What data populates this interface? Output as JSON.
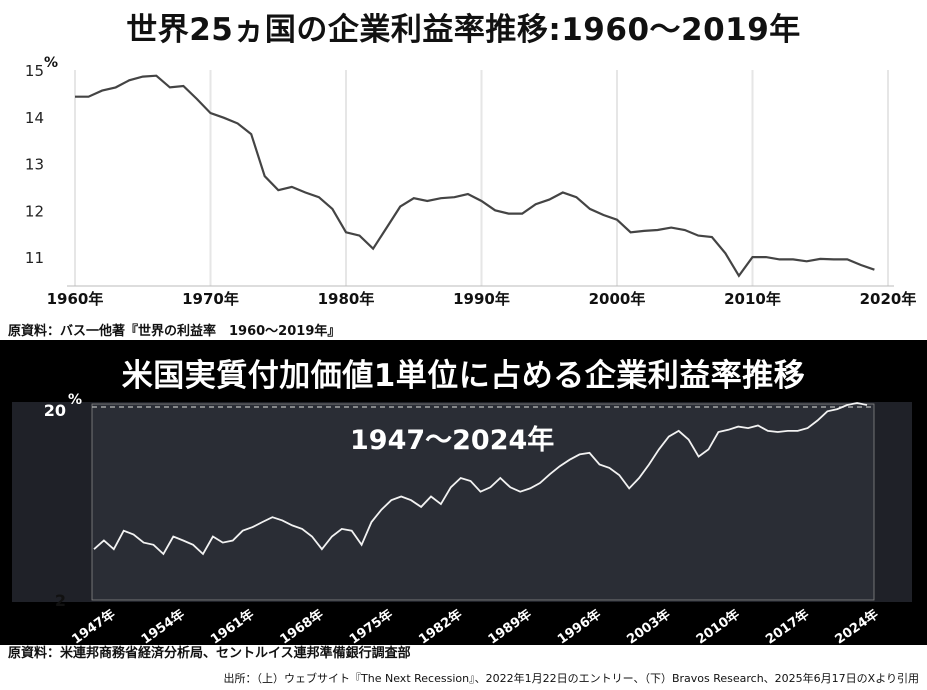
{
  "top": {
    "title": "世界25ヵ国の企業利益率推移:1960～2019年",
    "source": "原資料：バス一他著『世界の利益率　1960～2019年』"
  },
  "bottom": {
    "title": "米国実質付加価値1単位に占める企業利益率推移",
    "subtitle": "1947～2024年",
    "source": "原資料：米連邦商務省経済分析局、セントルイス連邦準備銀行調査部"
  },
  "footer": "出所：（上）ウェブサイト『The Next Recession』、2022年1月22日のエントリー、（下）Bravos Research、2025年6月17日のXより引用",
  "colors": {
    "top_line": "#444444",
    "bottom_bg": "#2a2d35",
    "bottom_line": "#f2f2f2"
  },
  "chart_data": [
    {
      "type": "line",
      "unit": "%",
      "xlim": [
        1960,
        2020
      ],
      "ylim": [
        10.8,
        15
      ],
      "x_ticks": [
        "1960年",
        "1970年",
        "1980年",
        "1990年",
        "2000年",
        "2010年",
        "2020年"
      ],
      "y_ticks": [
        "15",
        "14",
        "13",
        "12",
        "11"
      ],
      "grid": "vertical",
      "x": [
        1960,
        1961,
        1962,
        1963,
        1964,
        1965,
        1966,
        1967,
        1968,
        1969,
        1970,
        1971,
        1972,
        1973,
        1974,
        1975,
        1976,
        1977,
        1978,
        1979,
        1980,
        1981,
        1982,
        1983,
        1984,
        1985,
        1986,
        1987,
        1988,
        1989,
        1990,
        1991,
        1992,
        1993,
        1994,
        1995,
        1996,
        1997,
        1998,
        1999,
        2000,
        2001,
        2002,
        2003,
        2004,
        2005,
        2006,
        2007,
        2008,
        2009,
        2010,
        2011,
        2012,
        2013,
        2014,
        2015,
        2016,
        2017,
        2018,
        2019
      ],
      "y": [
        14.45,
        14.45,
        14.58,
        14.65,
        14.8,
        14.88,
        14.9,
        14.65,
        14.68,
        14.4,
        14.1,
        14.0,
        13.88,
        13.65,
        12.75,
        12.45,
        12.52,
        12.4,
        12.3,
        12.05,
        11.55,
        11.48,
        11.2,
        11.65,
        12.1,
        12.28,
        12.22,
        12.28,
        12.3,
        12.37,
        12.22,
        12.02,
        11.95,
        11.95,
        12.15,
        12.25,
        12.4,
        12.3,
        12.05,
        11.92,
        11.82,
        11.55,
        11.58,
        11.6,
        11.65,
        11.6,
        11.48,
        11.45,
        11.1,
        10.62,
        11.02,
        11.02,
        10.97,
        10.97,
        10.93,
        10.98,
        10.97,
        10.97,
        10.85,
        10.75
      ]
    },
    {
      "type": "line",
      "unit": "%",
      "scale": "log",
      "xlim": [
        1947,
        2025.5
      ],
      "ylim": [
        2,
        20
      ],
      "x_ticks": [
        "1947年",
        "1954年",
        "1961年",
        "1968年",
        "1975年",
        "1982年",
        "1989年",
        "1996年",
        "2003年",
        "2010年",
        "2017年",
        "2024年"
      ],
      "y_ticks": [
        "20",
        "2"
      ],
      "reference_line": 20,
      "x": [
        1947,
        1948,
        1949,
        1950,
        1951,
        1952,
        1953,
        1954,
        1955,
        1956,
        1957,
        1958,
        1959,
        1960,
        1961,
        1962,
        1963,
        1964,
        1965,
        1966,
        1967,
        1968,
        1969,
        1970,
        1971,
        1972,
        1973,
        1974,
        1975,
        1976,
        1977,
        1978,
        1979,
        1980,
        1981,
        1982,
        1983,
        1984,
        1985,
        1986,
        1987,
        1988,
        1989,
        1990,
        1991,
        1992,
        1993,
        1994,
        1995,
        1996,
        1997,
        1998,
        1999,
        2000,
        2001,
        2002,
        2003,
        2004,
        2005,
        2006,
        2007,
        2008,
        2009,
        2010,
        2011,
        2012,
        2013,
        2014,
        2015,
        2016,
        2017,
        2018,
        2019,
        2020,
        2021,
        2022,
        2023,
        2024,
        2025
      ],
      "y": [
        3.6,
        4.0,
        3.6,
        4.5,
        4.3,
        3.9,
        3.8,
        3.4,
        4.2,
        4.0,
        3.8,
        3.4,
        4.2,
        3.9,
        4.0,
        4.5,
        4.7,
        5.0,
        5.3,
        5.1,
        4.8,
        4.6,
        4.2,
        3.6,
        4.2,
        4.6,
        4.5,
        3.8,
        5.0,
        5.8,
        6.5,
        6.8,
        6.5,
        6.0,
        6.8,
        6.2,
        7.6,
        8.5,
        8.2,
        7.2,
        7.6,
        8.5,
        7.6,
        7.2,
        7.5,
        8.0,
        8.9,
        9.8,
        10.6,
        11.3,
        11.5,
        10.0,
        9.6,
        8.8,
        7.5,
        8.5,
        10.0,
        12.0,
        14.0,
        15.0,
        13.5,
        11.0,
        12.0,
        14.8,
        15.2,
        15.8,
        15.5,
        16.0,
        15.0,
        14.8,
        15.0,
        15.0,
        15.5,
        17.0,
        19.0,
        19.5,
        20.5,
        21.0,
        20.5
      ]
    }
  ]
}
